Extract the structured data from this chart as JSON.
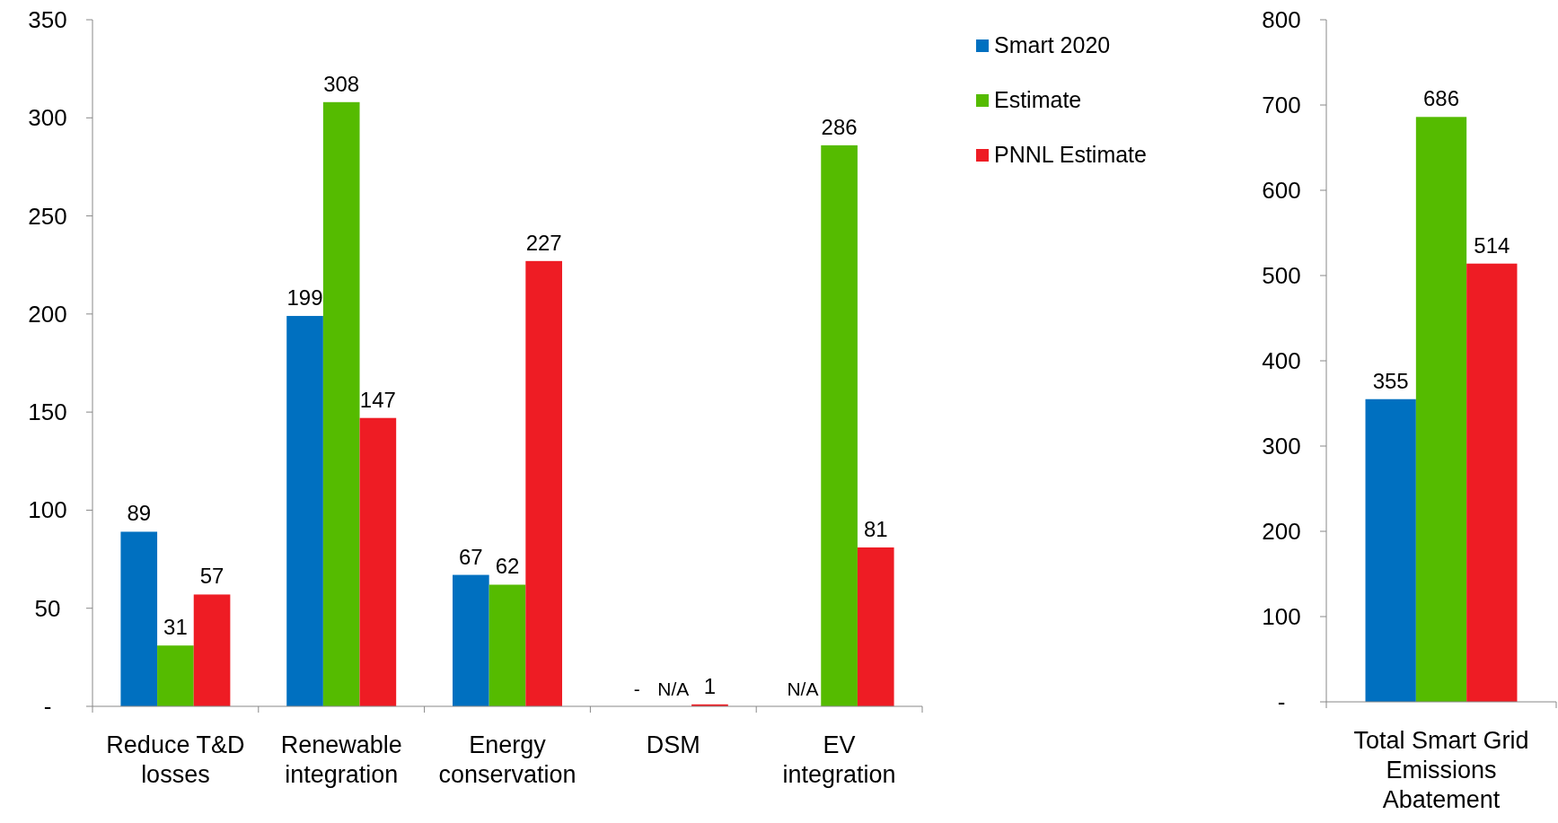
{
  "chart_data": [
    {
      "type": "bar",
      "categories": [
        "Reduce T&D losses",
        "Renewable integration",
        "Energy conservation",
        "DSM",
        "EV integration"
      ],
      "series": [
        {
          "name": "Smart 2020",
          "color": "#0070c0",
          "values": [
            89,
            199,
            67,
            null,
            null
          ],
          "value_labels": [
            "89",
            "199",
            "67",
            "-",
            "N/A"
          ]
        },
        {
          "name": "Estimate",
          "color": "#55bb00",
          "values": [
            31,
            308,
            62,
            null,
            286
          ],
          "value_labels": [
            "31",
            "308",
            "62",
            "N/A",
            "286"
          ]
        },
        {
          "name": "PNNL Estimate",
          "color": "#ee1c24",
          "values": [
            57,
            147,
            227,
            1,
            81
          ],
          "value_labels": [
            "57",
            "147",
            "227",
            "1",
            "81"
          ]
        }
      ],
      "ylim": [
        0,
        350
      ],
      "yticks": [
        {
          "value": 0,
          "label": "-"
        },
        50,
        100,
        150,
        200,
        250,
        300,
        350
      ],
      "grid": false,
      "legend": "top right"
    },
    {
      "type": "bar",
      "categories": [
        "Total Smart Grid Emissions Abatement"
      ],
      "series": [
        {
          "color": "#0070c0",
          "values": [
            355
          ]
        },
        {
          "color": "#55bb00",
          "values": [
            686
          ]
        },
        {
          "color": "#ee1c24",
          "values": [
            514
          ]
        }
      ],
      "ylim": [
        0,
        800
      ],
      "yticks": [
        {
          "value": 0,
          "label": "-"
        },
        100,
        200,
        300,
        400,
        500,
        600,
        700,
        800
      ],
      "grid": false,
      "data_labels": true
    }
  ]
}
